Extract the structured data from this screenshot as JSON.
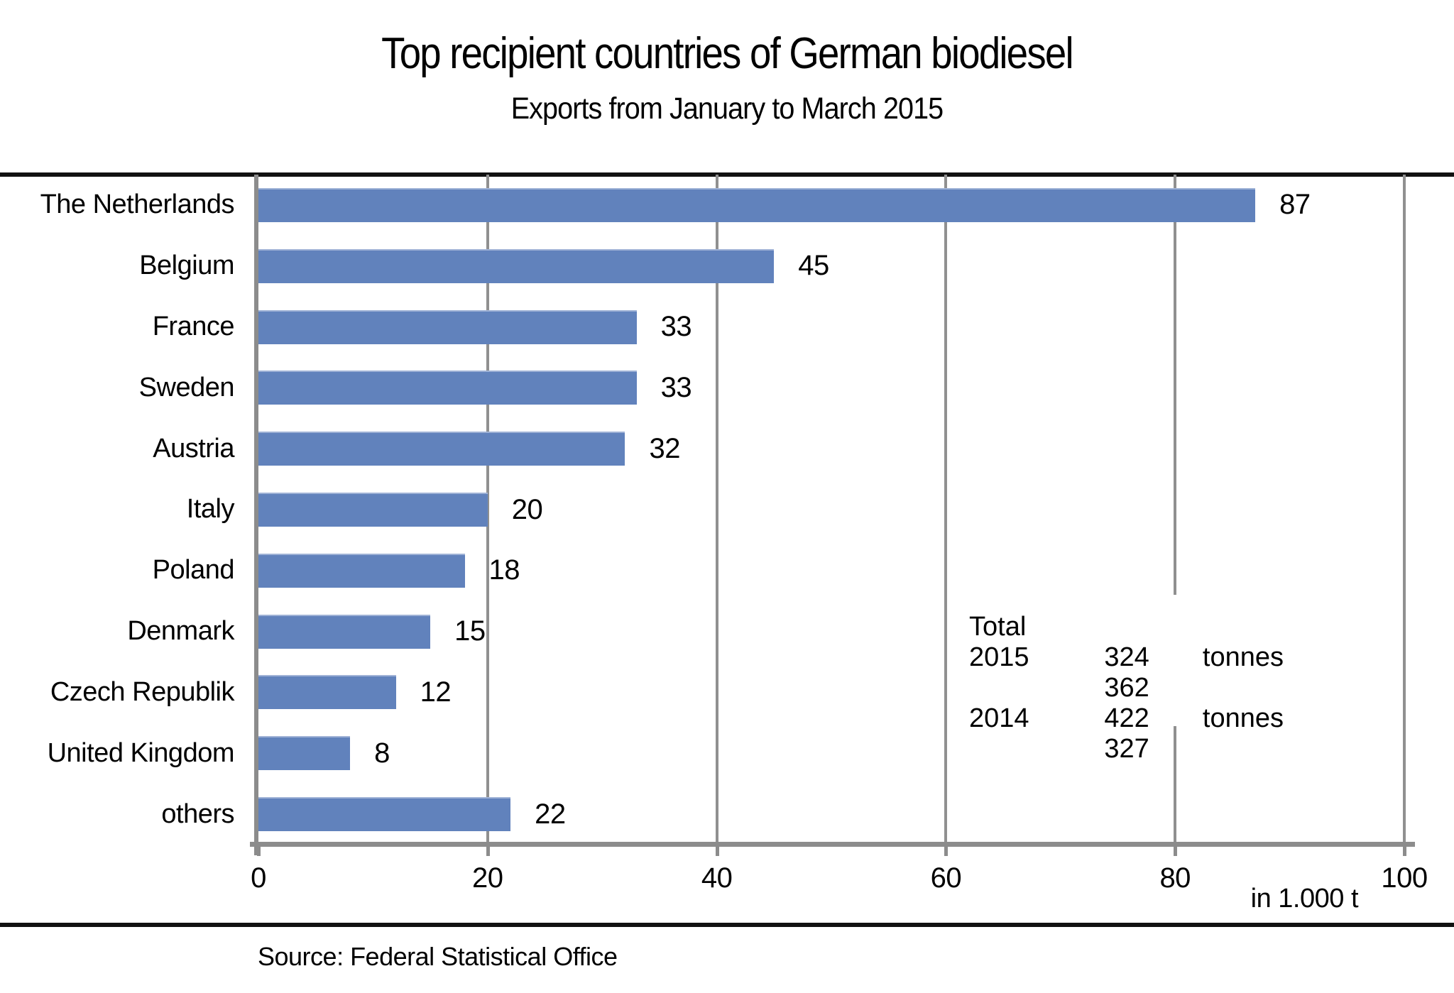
{
  "title": "Top recipient countries of German biodiesel",
  "subtitle": "Exports from January to March 2015",
  "source": "Source: Federal Statistical Office",
  "unit_label": "in 1.000 t",
  "total_box": {
    "heading": "Total",
    "rows": [
      {
        "year": "2015",
        "amount": "324 362",
        "unit": "tonnes"
      },
      {
        "year": "2014",
        "amount": "422 327",
        "unit": "tonnes"
      }
    ]
  },
  "colors": {
    "bar": "#6182BC",
    "gridline": "#909090",
    "axis": "#8C8C8C",
    "rule": "#111111"
  },
  "chart_data": {
    "type": "bar",
    "orientation": "horizontal",
    "title": "Top recipient countries of German biodiesel",
    "subtitle": "Exports from January to March 2015",
    "categories": [
      "The Netherlands",
      "Belgium",
      "France",
      "Sweden",
      "Austria",
      "Italy",
      "Poland",
      "Denmark",
      "Czech Republik",
      "United Kingdom",
      "others"
    ],
    "values": [
      87,
      45,
      33,
      33,
      32,
      20,
      18,
      15,
      12,
      8,
      22
    ],
    "xlabel": "in 1.000 t",
    "xlim": [
      0,
      100
    ],
    "x_ticks": [
      0,
      20,
      40,
      60,
      80,
      100
    ],
    "grid": "vertical-gridlines-on",
    "legend": "none",
    "bar_color": "#6182BC",
    "annotation": "Total 2015: 324 362 tonnes; 2014: 422 327 tonnes"
  }
}
